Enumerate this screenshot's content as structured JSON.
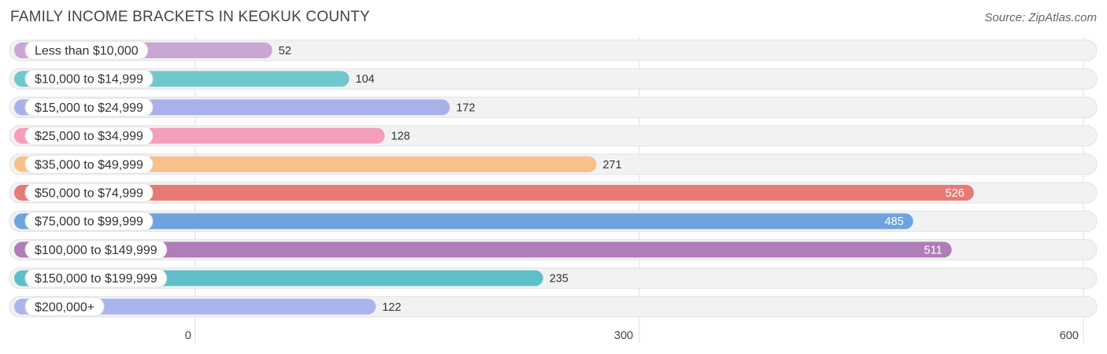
{
  "header": {
    "title": "FAMILY INCOME BRACKETS IN KEOKUK COUNTY",
    "source": "Source: ZipAtlas.com"
  },
  "chart_data": {
    "type": "bar",
    "orientation": "horizontal",
    "title": "FAMILY INCOME BRACKETS IN KEOKUK COUNTY",
    "xlabel": "",
    "ylabel": "",
    "xlim": [
      0,
      600
    ],
    "ticks": [
      0,
      300,
      600
    ],
    "grid": true,
    "categories": [
      "Less than $10,000",
      "$10,000 to $14,999",
      "$15,000 to $24,999",
      "$25,000 to $34,999",
      "$35,000 to $49,999",
      "$50,000 to $74,999",
      "$75,000 to $99,999",
      "$100,000 to $149,999",
      "$150,000 to $199,999",
      "$200,000+"
    ],
    "values": [
      52,
      104,
      172,
      128,
      271,
      526,
      485,
      511,
      235,
      122
    ],
    "colors": [
      "#c9a6d3",
      "#6fc8cc",
      "#a8b1ea",
      "#f59db9",
      "#f9c08b",
      "#e87a76",
      "#6fa3e0",
      "#b07db8",
      "#5ebfc9",
      "#aab5ee"
    ]
  }
}
